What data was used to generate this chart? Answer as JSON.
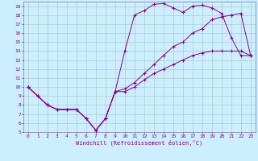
{
  "xlabel": "Windchill (Refroidissement éolien,°C)",
  "background_color": "#cceeff",
  "grid_color": "#aacccc",
  "line_color": "#880088",
  "spine_color": "#7777aa",
  "xlim": [
    -0.5,
    23.5
  ],
  "ylim": [
    5,
    19.5
  ],
  "xticks": [
    0,
    1,
    2,
    3,
    4,
    5,
    6,
    7,
    8,
    9,
    10,
    11,
    12,
    13,
    14,
    15,
    16,
    17,
    18,
    19,
    20,
    21,
    22,
    23
  ],
  "yticks": [
    5,
    6,
    7,
    8,
    9,
    10,
    11,
    12,
    13,
    14,
    15,
    16,
    17,
    18,
    19
  ],
  "line1_x": [
    0,
    1,
    2,
    3,
    4,
    5,
    6,
    7,
    8,
    9,
    10,
    11,
    12,
    13,
    14,
    15,
    16,
    17,
    18,
    19,
    20,
    21,
    22,
    23
  ],
  "line1_y": [
    10,
    9,
    8,
    7.5,
    7.5,
    7.5,
    6.5,
    5.2,
    6.5,
    9.5,
    14,
    18,
    18.5,
    19.2,
    19.3,
    18.8,
    18.3,
    19.0,
    19.1,
    18.8,
    18.2,
    15.5,
    13.5,
    13.5
  ],
  "line2_x": [
    0,
    1,
    2,
    3,
    4,
    5,
    6,
    7,
    8,
    9,
    10,
    11,
    12,
    13,
    14,
    15,
    16,
    17,
    18,
    19,
    20,
    21,
    22,
    23
  ],
  "line2_y": [
    10,
    9,
    8,
    7.5,
    7.5,
    7.5,
    6.5,
    5.2,
    6.5,
    9.5,
    9.8,
    10.5,
    11.5,
    12.5,
    13.5,
    14.5,
    15.0,
    16.0,
    16.5,
    17.5,
    17.8,
    18.0,
    18.2,
    13.5
  ],
  "line3_x": [
    0,
    1,
    2,
    3,
    4,
    5,
    6,
    7,
    8,
    9,
    10,
    11,
    12,
    13,
    14,
    15,
    16,
    17,
    18,
    19,
    20,
    21,
    22,
    23
  ],
  "line3_y": [
    10,
    9,
    8,
    7.5,
    7.5,
    7.5,
    6.5,
    5.2,
    6.5,
    9.5,
    9.5,
    10.0,
    10.8,
    11.5,
    12.0,
    12.5,
    13.0,
    13.5,
    13.8,
    14.0,
    14.0,
    14.0,
    14.0,
    13.5
  ]
}
